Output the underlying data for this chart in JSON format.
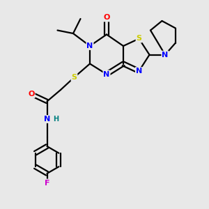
{
  "bg_color": "#e8e8e8",
  "atom_colors": {
    "S": "#cccc00",
    "N": "#0000ff",
    "O": "#ff0000",
    "F": "#cc00cc",
    "C": "#000000",
    "H": "#008080"
  },
  "lw": 1.6,
  "fs": 8.0
}
